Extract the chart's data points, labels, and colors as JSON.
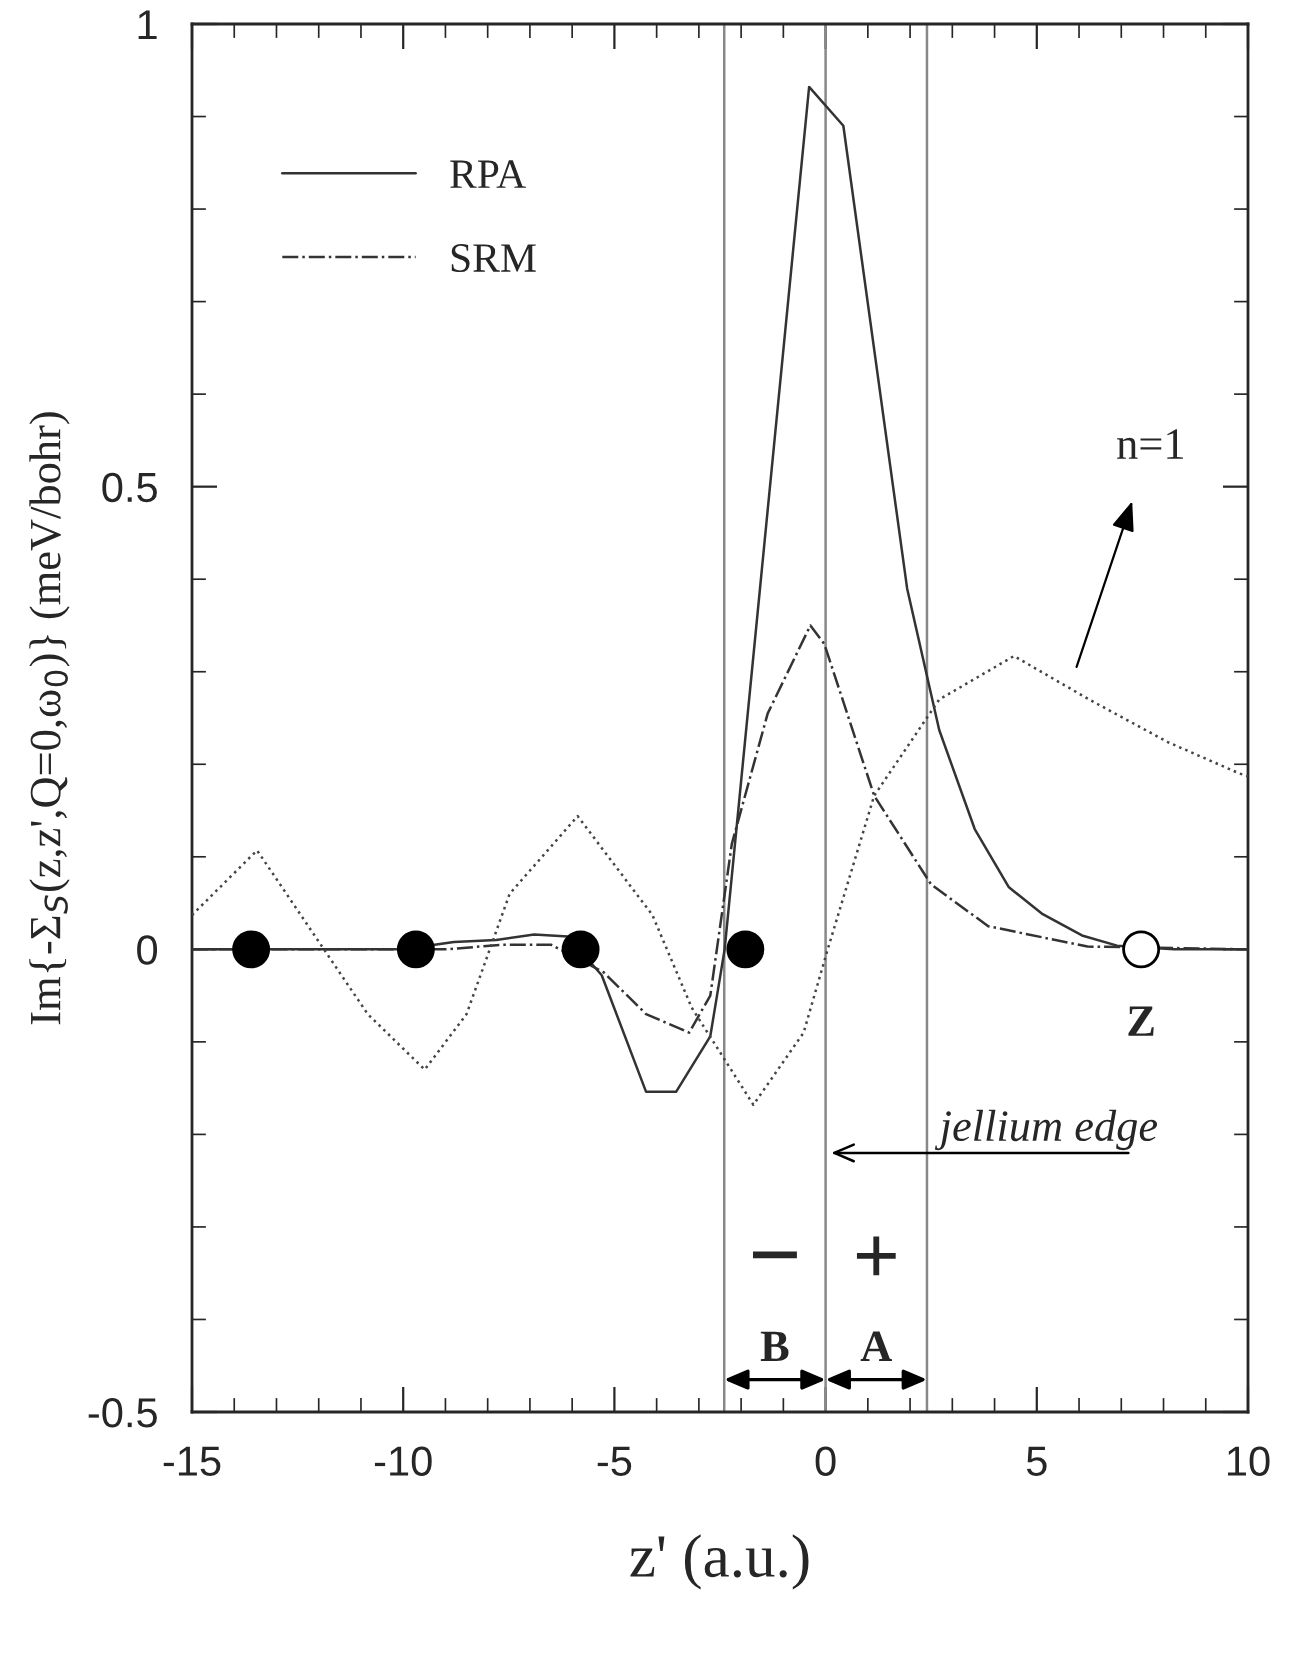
{
  "chart_data": {
    "type": "line",
    "xlabel": "z' (a.u.)",
    "ylabel": "Im{-Σ$_{S}$(z,z',Q=0,ω$_{0}$)} (meV/bohr)",
    "xlim": [
      -15,
      10
    ],
    "xticks": [
      {
        "value": -15,
        "label": "-15"
      },
      {
        "value": -10,
        "label": "-10"
      },
      {
        "value": -5,
        "label": "-5"
      },
      0,
      5,
      10
    ],
    "ylim": [
      -0.5,
      1
    ],
    "yticks": [
      {
        "value": -0.5,
        "label": "-0.5"
      },
      0,
      0.5,
      1
    ],
    "legend": "top left",
    "grid": false,
    "series": [
      {
        "name": "RPA",
        "line_style": "solid",
        "color": "#333333",
        "x": [
          -15,
          -10,
          -8.8,
          -7.8,
          -6.9,
          -6.1,
          -5.3,
          -4.25,
          -3.54,
          -2.73,
          -2.39,
          -0.39,
          0.42,
          1.93,
          2.69,
          3.53,
          4.34,
          5.14,
          6.07,
          6.9,
          8.25,
          10
        ],
        "values": [
          0,
          0,
          0.008,
          0.01,
          0.016,
          0.014,
          -0.028,
          -0.154,
          -0.154,
          -0.094,
          0,
          0.932,
          0.89,
          0.39,
          0.237,
          0.13,
          0.067,
          0.038,
          0.015,
          0.004,
          0,
          0
        ]
      },
      {
        "name": "SRM",
        "line_style": "dashdot",
        "color": "#333333",
        "x": [
          -15,
          -9,
          -7.63,
          -6.5,
          -5.25,
          -4.25,
          -3.23,
          -2.73,
          -2.22,
          -1.37,
          -0.36,
          -0.03,
          1.15,
          2.5,
          3.85,
          6.2,
          10
        ],
        "values": [
          0,
          0,
          0.005,
          0.005,
          -0.025,
          -0.07,
          -0.09,
          -0.05,
          0.114,
          0.255,
          0.35,
          0.33,
          0.166,
          0.07,
          0.025,
          0.003,
          0
        ]
      },
      {
        "line_style": "dotted",
        "color": "#444444",
        "x": [
          -15,
          -13.46,
          -10.84,
          -9.49,
          -8.5,
          -7.48,
          -5.87,
          -4.1,
          -3.17,
          -1.71,
          -0.52,
          0.05,
          1.15,
          2.69,
          4.46,
          6.24,
          8.1,
          9.8,
          10
        ],
        "values": [
          0.037,
          0.107,
          -0.07,
          -0.13,
          -0.07,
          0.06,
          0.144,
          0.037,
          -0.063,
          -0.168,
          -0.09,
          0,
          0.166,
          0.27,
          0.317,
          0.27,
          0.224,
          0.19,
          0.187
        ]
      },
      {
        "type": "scatter",
        "marker": "circle",
        "color": "#000000",
        "x": [
          -13.6,
          -9.7,
          -5.8,
          -1.9
        ],
        "values": [
          0,
          0,
          0,
          0
        ]
      },
      {
        "type": "scatter",
        "marker": "circle",
        "color": "#ffffff",
        "x": [
          7.47
        ],
        "values": [
          0
        ]
      }
    ],
    "ref_lines": [
      {
        "axis": "x",
        "value": -2.4,
        "color": "#888888"
      },
      {
        "axis": "x",
        "value": 0,
        "color": "#888888"
      },
      {
        "axis": "x",
        "value": 2.4,
        "color": "#888888"
      }
    ],
    "annotations": [
      "n=1",
      {
        "text": "jellium edge",
        "x": 0,
        "y": -0.22
      },
      {
        "text": "Z",
        "x": 7.47,
        "y": 0
      },
      "−",
      "+",
      {
        "text": "B",
        "x": -2.4,
        "y": -0.465
      },
      {
        "text": "A",
        "x": 2.4,
        "y": -0.465
      }
    ]
  }
}
